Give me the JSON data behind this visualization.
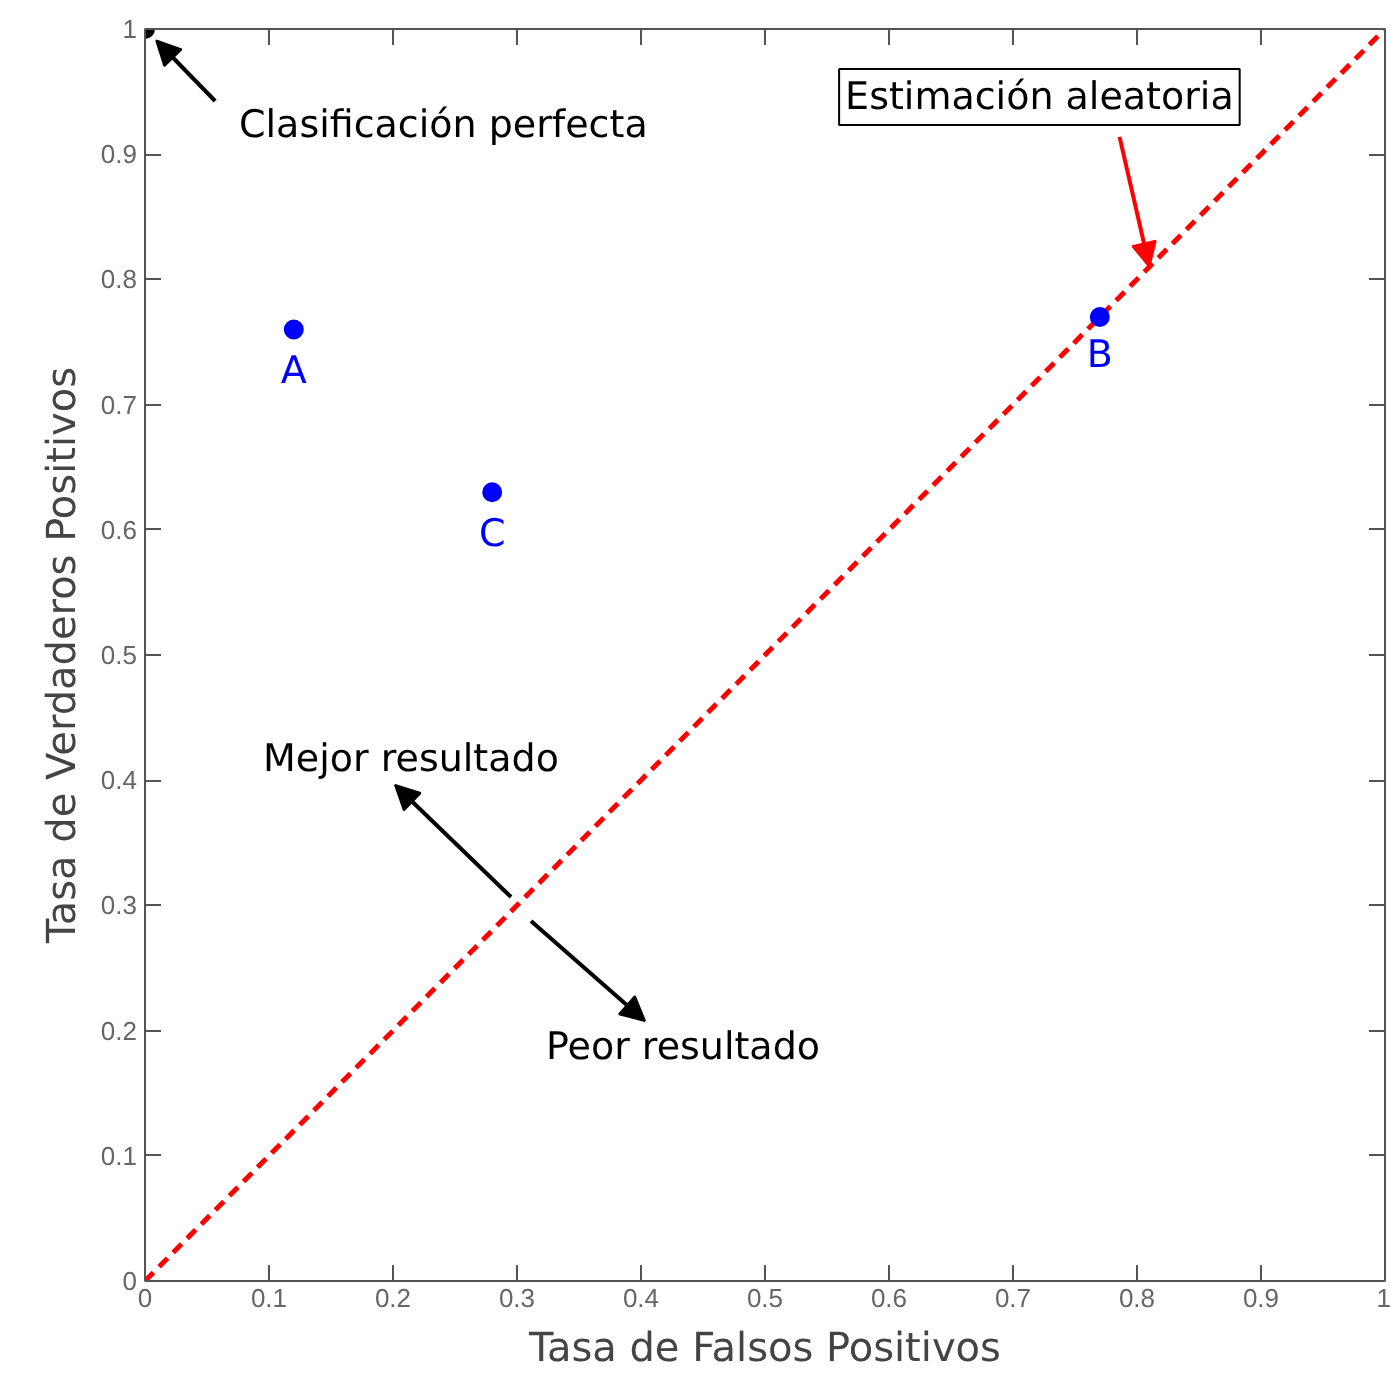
{
  "chart_data": {
    "type": "scatter",
    "xlabel": "Tasa de Falsos Positivos",
    "ylabel": "Tasa de Verdaderos Positivos",
    "xlim": [
      0,
      1
    ],
    "ylim": [
      0,
      1
    ],
    "xticks": [
      0,
      0.1,
      0.2,
      0.3,
      0.4,
      0.5,
      0.6,
      0.7,
      0.8,
      0.9,
      1
    ],
    "yticks": [
      0,
      0.1,
      0.2,
      0.3,
      0.4,
      0.5,
      0.6,
      0.7,
      0.8,
      0.9,
      1
    ],
    "grid": false,
    "series": [
      {
        "type": "line",
        "color": "#ff0000",
        "x": [
          0,
          1
        ],
        "values": [
          0,
          1
        ],
        "line_style": "dashed",
        "marker": "none"
      },
      {
        "color": "#0000ff",
        "x": [
          0.12,
          0.77,
          0.28
        ],
        "values": [
          0.76,
          0.77,
          0.63
        ]
      },
      {
        "color": "#000000",
        "x": [
          0
        ],
        "values": [
          1
        ]
      }
    ],
    "annotations": [
      {
        "text": "A",
        "x": 0.12,
        "y": 0.76
      },
      {
        "text": "B",
        "x": 0.77,
        "y": 0.77
      },
      {
        "text": "C",
        "x": 0.28,
        "y": 0.63
      },
      {
        "text": "Clasificación perfecta",
        "x": 0,
        "y": 1
      },
      {
        "text": "Estimación aleatoria",
        "x": 0.81,
        "y": 0.81
      },
      "Mejor resultado",
      "Peor resultado"
    ]
  }
}
